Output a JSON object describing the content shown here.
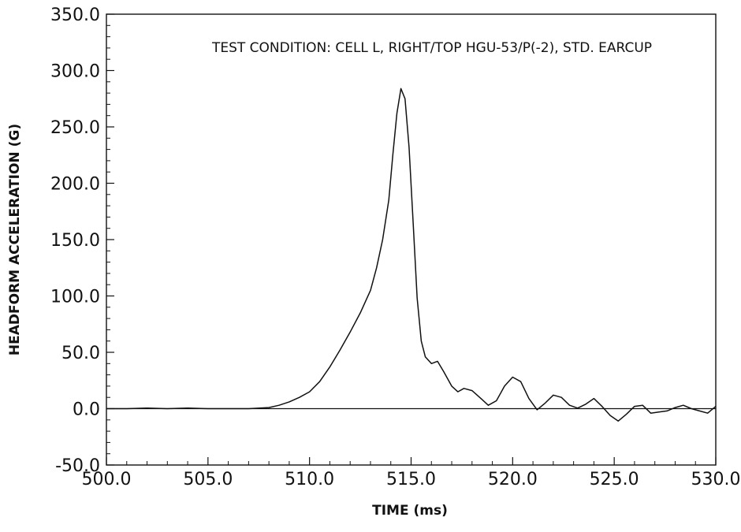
{
  "chart_data": {
    "type": "line",
    "title": "",
    "annotation": "TEST CONDITION: CELL L, RIGHT/TOP HGU-53/P(-2), STD. EARCUP",
    "xlabel": "TIME  (ms)",
    "ylabel": "HEADFORM ACCELERATION  (G)",
    "xlim": [
      500,
      530
    ],
    "ylim": [
      -50,
      350
    ],
    "x_ticks": [
      "500.0",
      "505.0",
      "510.0",
      "515.0",
      "520.0",
      "525.0",
      "530.0"
    ],
    "y_ticks": [
      "-50.0",
      "0.0",
      "50.0",
      "100.0",
      "150.0",
      "200.0",
      "250.0",
      "300.0",
      "350.0"
    ],
    "grid": false,
    "legend": "none",
    "reference_line_y": 0,
    "series": [
      {
        "color": "#111111",
        "x": [
          500.0,
          501.0,
          502.0,
          503.0,
          504.0,
          505.0,
          506.0,
          507.0,
          508.0,
          508.5,
          509.0,
          509.5,
          510.0,
          510.5,
          511.0,
          511.5,
          512.0,
          512.5,
          513.0,
          513.3,
          513.6,
          513.9,
          514.1,
          514.3,
          514.5,
          514.7,
          514.9,
          515.1,
          515.3,
          515.5,
          515.7,
          516.0,
          516.3,
          516.6,
          517.0,
          517.3,
          517.6,
          518.0,
          518.5,
          518.8,
          519.2,
          519.6,
          520.0,
          520.4,
          520.8,
          521.2,
          521.6,
          522.0,
          522.4,
          522.8,
          523.2,
          523.6,
          524.0,
          524.4,
          524.8,
          525.2,
          525.6,
          526.0,
          526.4,
          526.8,
          527.2,
          527.6,
          528.0,
          528.4,
          528.8,
          529.2,
          529.6,
          530.0
        ],
        "values": [
          0.0,
          0.0,
          0.5,
          0.0,
          0.5,
          0.0,
          0.0,
          0.0,
          1.0,
          3.0,
          6.0,
          10.0,
          15.0,
          24.0,
          37.0,
          52.0,
          68.0,
          85.0,
          105.0,
          125.0,
          150.0,
          185.0,
          225.0,
          262.0,
          284.0,
          275.0,
          232.0,
          165.0,
          98.0,
          60.0,
          46.0,
          40.0,
          42.0,
          33.0,
          20.0,
          15.0,
          18.0,
          16.0,
          8.0,
          3.0,
          7.0,
          20.0,
          28.0,
          24.0,
          9.0,
          -1.0,
          5.0,
          12.0,
          10.0,
          3.0,
          0.5,
          4.0,
          9.0,
          2.0,
          -6.0,
          -11.0,
          -5.0,
          2.0,
          3.0,
          -4.0,
          -3.0,
          -2.0,
          1.0,
          3.0,
          0.0,
          -2.0,
          -4.0,
          2.0
        ]
      }
    ]
  }
}
